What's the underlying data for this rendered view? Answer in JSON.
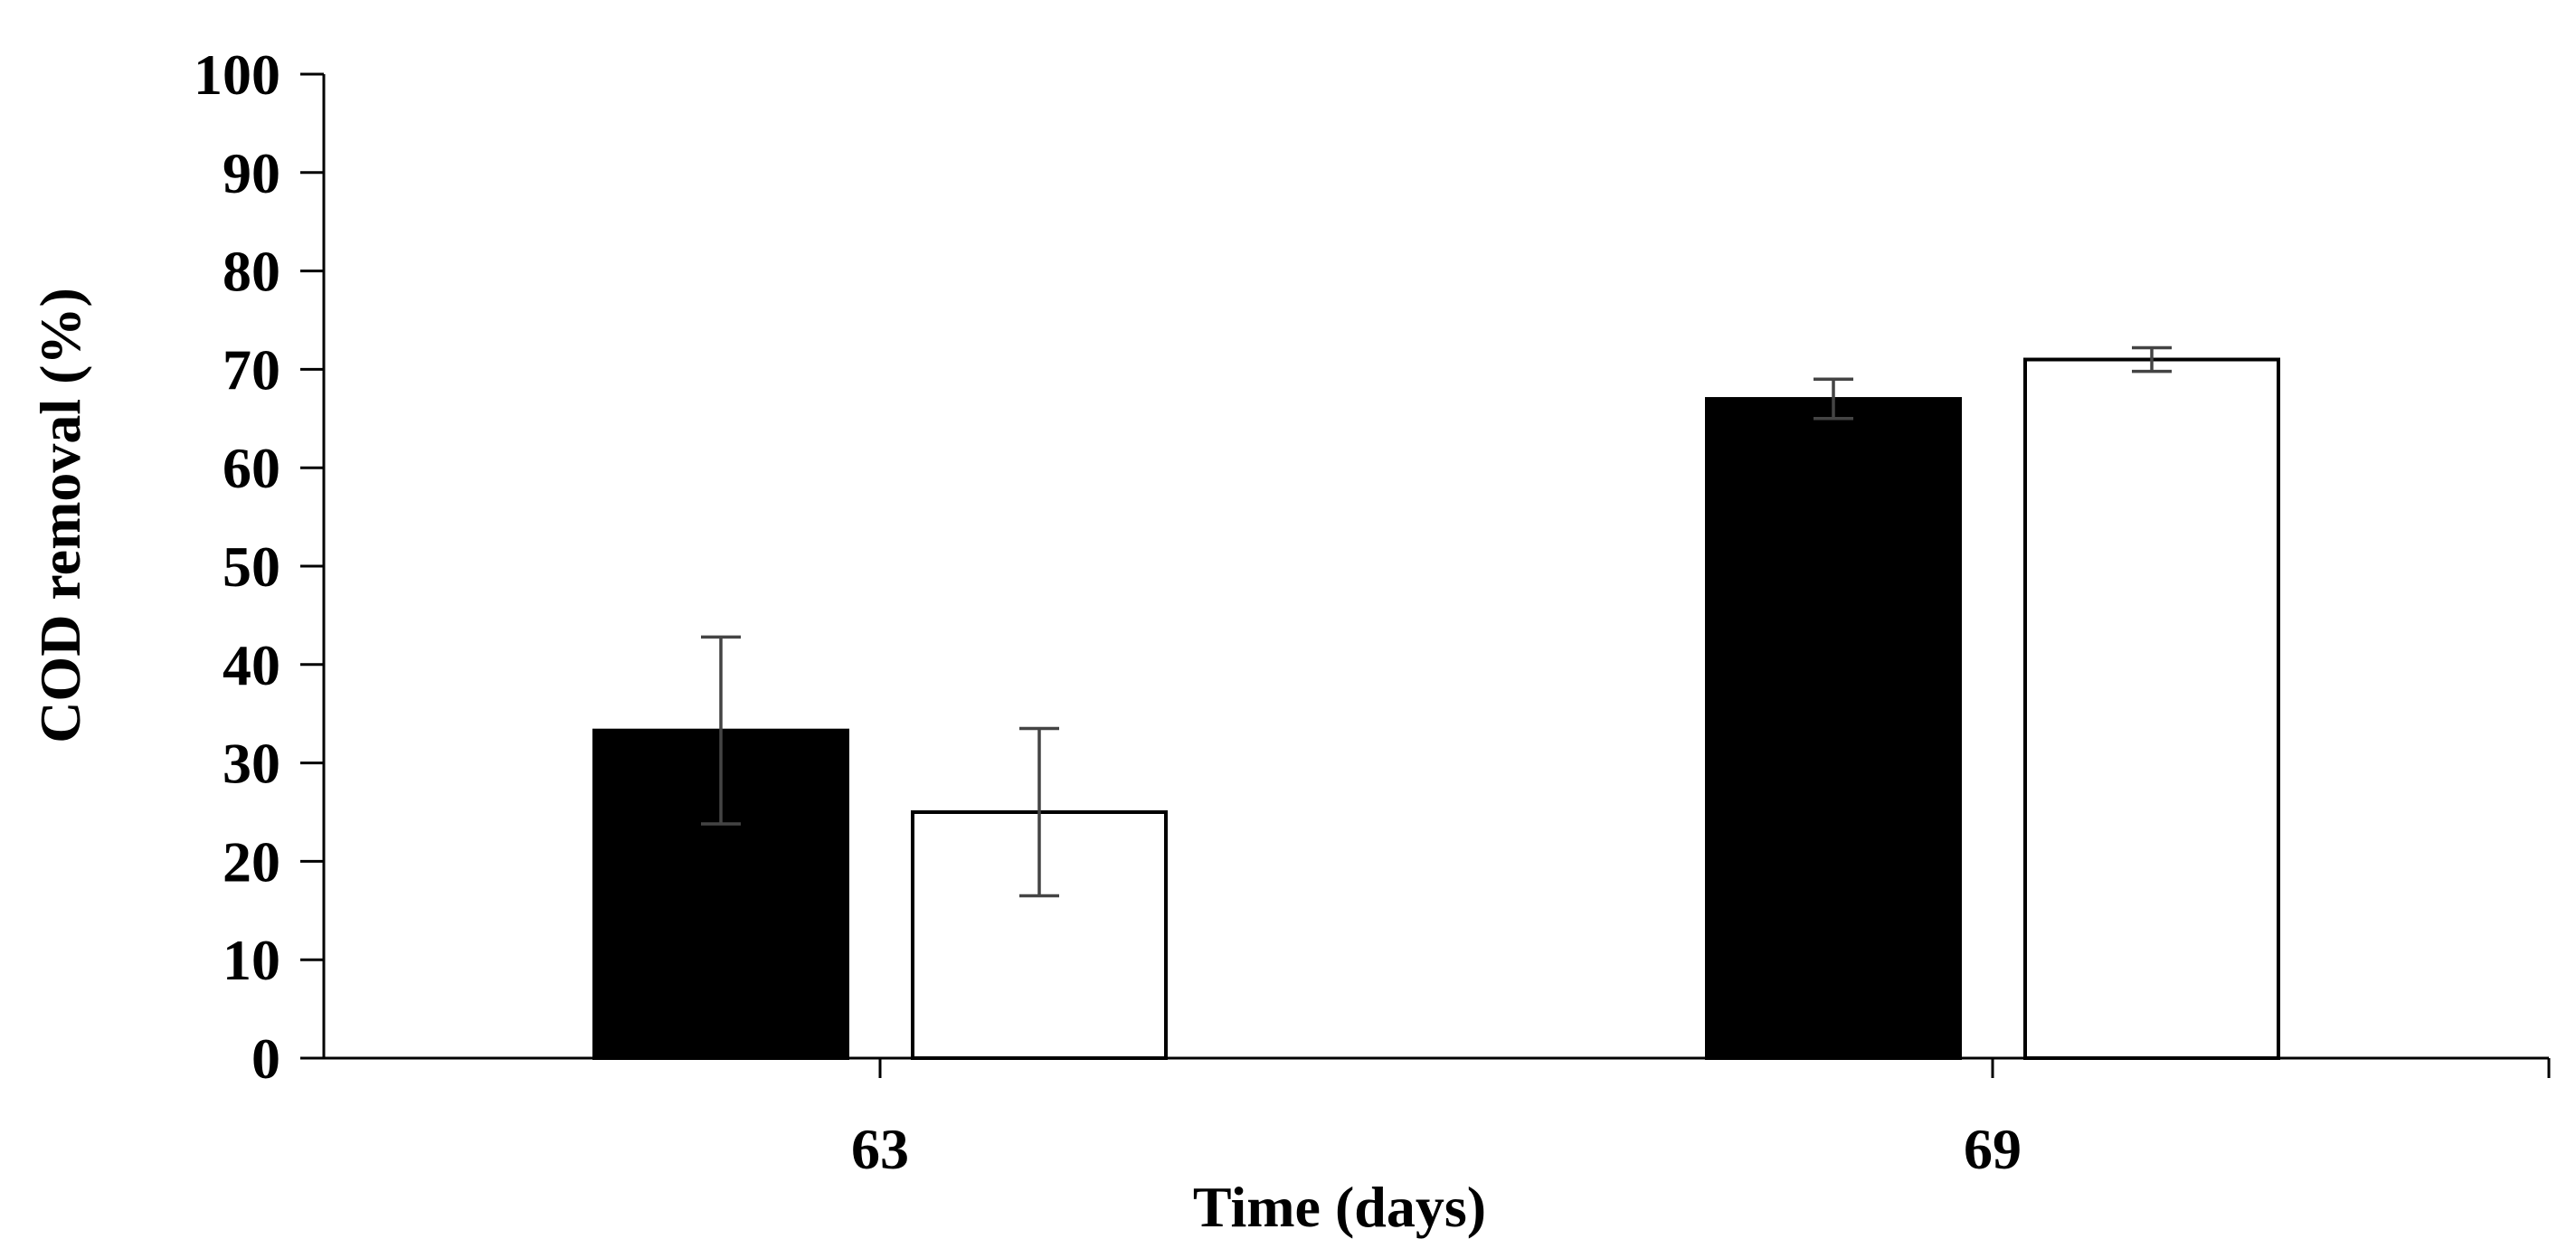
{
  "chart_data": {
    "type": "bar",
    "title": "",
    "xlabel": "Time (days)",
    "ylabel": "COD removal (%)",
    "ylim": [
      0,
      100
    ],
    "yticks": [
      0,
      10,
      20,
      30,
      40,
      50,
      60,
      70,
      80,
      90,
      100
    ],
    "categories": [
      "63",
      "69"
    ],
    "grid": false,
    "legend": "none",
    "series": [
      {
        "color": "#000000",
        "fill": "#000000",
        "values": [
          33.3,
          67.0
        ],
        "errors": [
          9.5,
          2.0
        ]
      },
      {
        "color": "#000000",
        "fill": "#ffffff",
        "values": [
          25.0,
          71.0
        ],
        "errors": [
          8.5,
          1.2
        ]
      }
    ]
  }
}
